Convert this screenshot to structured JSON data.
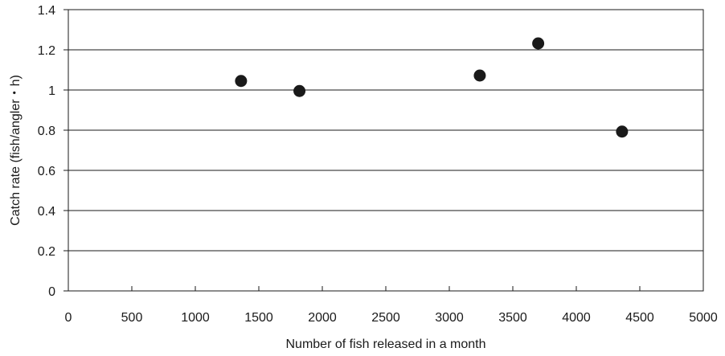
{
  "chart_data": {
    "type": "scatter",
    "xlabel": "Number of fish released in a month",
    "ylabel": "Catch rate (fish/angler・h)",
    "xlim": [
      0,
      5000
    ],
    "ylim": [
      0,
      1.4
    ],
    "xticks": [
      0,
      500,
      1000,
      1500,
      2000,
      2500,
      3000,
      3500,
      4000,
      4500,
      5000
    ],
    "yticks": [
      0,
      0.2,
      0.4,
      0.6,
      0.8,
      1,
      1.2,
      1.4
    ],
    "xtick_labels": [
      "0",
      "500",
      "1000",
      "1500",
      "2000",
      "2500",
      "3000",
      "3500",
      "4000",
      "4500",
      "5000"
    ],
    "ytick_labels": [
      "0",
      "0.2",
      "0.4",
      "0.6",
      "0.8",
      "1",
      "1.2",
      "1.4"
    ],
    "grid": "horizontal",
    "legend": "none",
    "marker_color": "#1a1a1a",
    "points": [
      {
        "x": 1360,
        "y": 1.045
      },
      {
        "x": 1820,
        "y": 0.995
      },
      {
        "x": 3240,
        "y": 1.072
      },
      {
        "x": 3700,
        "y": 1.232
      },
      {
        "x": 4360,
        "y": 0.793
      }
    ]
  }
}
